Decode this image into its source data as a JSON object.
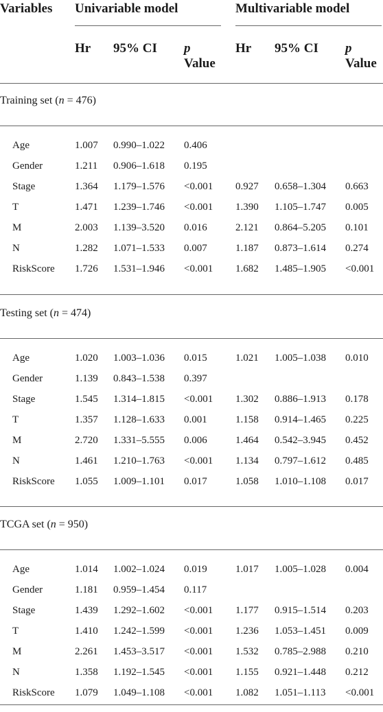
{
  "header": {
    "variables": "Variables",
    "univariable": "Univariable model",
    "multivariable": "Multivariable model",
    "hr": "Hr",
    "ci": "95% CI",
    "p": "p",
    "value": "Value"
  },
  "sections": [
    {
      "title_pre": "Training set (",
      "n_italic": "n",
      "title_post": " = 476)",
      "rows": [
        {
          "var": "Age",
          "u_hr": "1.007",
          "u_ci": "0.990–1.022",
          "u_p": "0.406",
          "m_hr": "",
          "m_ci": "",
          "m_p": ""
        },
        {
          "var": "Gender",
          "u_hr": "1.211",
          "u_ci": "0.906–1.618",
          "u_p": "0.195",
          "m_hr": "",
          "m_ci": "",
          "m_p": ""
        },
        {
          "var": "Stage",
          "u_hr": "1.364",
          "u_ci": "1.179–1.576",
          "u_p": "<0.001",
          "m_hr": "0.927",
          "m_ci": "0.658–1.304",
          "m_p": "0.663"
        },
        {
          "var": "T",
          "u_hr": "1.471",
          "u_ci": "1.239–1.746",
          "u_p": "<0.001",
          "m_hr": "1.390",
          "m_ci": "1.105–1.747",
          "m_p": "0.005"
        },
        {
          "var": "M",
          "u_hr": "2.003",
          "u_ci": "1.139–3.520",
          "u_p": "0.016",
          "m_hr": "2.121",
          "m_ci": "0.864–5.205",
          "m_p": "0.101"
        },
        {
          "var": "N",
          "u_hr": "1.282",
          "u_ci": "1.071–1.533",
          "u_p": "0.007",
          "m_hr": "1.187",
          "m_ci": "0.873–1.614",
          "m_p": "0.274"
        },
        {
          "var": "RiskScore",
          "u_hr": "1.726",
          "u_ci": "1.531–1.946",
          "u_p": "<0.001",
          "m_hr": "1.682",
          "m_ci": "1.485–1.905",
          "m_p": "<0.001"
        }
      ]
    },
    {
      "title_pre": "Testing set (",
      "n_italic": "n",
      "title_post": " = 474)",
      "rows": [
        {
          "var": "Age",
          "u_hr": "1.020",
          "u_ci": "1.003–1.036",
          "u_p": "0.015",
          "m_hr": "1.021",
          "m_ci": "1.005–1.038",
          "m_p": "0.010"
        },
        {
          "var": "Gender",
          "u_hr": "1.139",
          "u_ci": "0.843–1.538",
          "u_p": "0.397",
          "m_hr": "",
          "m_ci": "",
          "m_p": ""
        },
        {
          "var": "Stage",
          "u_hr": "1.545",
          "u_ci": "1.314–1.815",
          "u_p": "<0.001",
          "m_hr": "1.302",
          "m_ci": "0.886–1.913",
          "m_p": "0.178"
        },
        {
          "var": "T",
          "u_hr": "1.357",
          "u_ci": "1.128–1.633",
          "u_p": "0.001",
          "m_hr": "1.158",
          "m_ci": "0.914–1.465",
          "m_p": "0.225"
        },
        {
          "var": "M",
          "u_hr": "2.720",
          "u_ci": "1.331–5.555",
          "u_p": "0.006",
          "m_hr": "1.464",
          "m_ci": "0.542–3.945",
          "m_p": "0.452"
        },
        {
          "var": "N",
          "u_hr": "1.461",
          "u_ci": "1.210–1.763",
          "u_p": "<0.001",
          "m_hr": "1.134",
          "m_ci": "0.797–1.612",
          "m_p": "0.485"
        },
        {
          "var": "RiskScore",
          "u_hr": "1.055",
          "u_ci": "1.009–1.101",
          "u_p": "0.017",
          "m_hr": "1.058",
          "m_ci": "1.010–1.108",
          "m_p": "0.017"
        }
      ]
    },
    {
      "title_pre": "TCGA set (",
      "n_italic": "n",
      "title_post": " = 950)",
      "rows": [
        {
          "var": "Age",
          "u_hr": "1.014",
          "u_ci": "1.002–1.024",
          "u_p": "0.019",
          "m_hr": "1.017",
          "m_ci": "1.005–1.028",
          "m_p": "0.004"
        },
        {
          "var": "Gender",
          "u_hr": "1.181",
          "u_ci": "0.959–1.454",
          "u_p": "0.117",
          "m_hr": "",
          "m_ci": "",
          "m_p": ""
        },
        {
          "var": "Stage",
          "u_hr": "1.439",
          "u_ci": "1.292–1.602",
          "u_p": "<0.001",
          "m_hr": "1.177",
          "m_ci": "0.915–1.514",
          "m_p": "0.203"
        },
        {
          "var": "T",
          "u_hr": "1.410",
          "u_ci": "1.242–1.599",
          "u_p": "<0.001",
          "m_hr": "1.236",
          "m_ci": "1.053–1.451",
          "m_p": "0.009"
        },
        {
          "var": "M",
          "u_hr": "2.261",
          "u_ci": "1.453–3.517",
          "u_p": "<0.001",
          "m_hr": "1.532",
          "m_ci": "0.785–2.988",
          "m_p": "0.210"
        },
        {
          "var": "N",
          "u_hr": "1.358",
          "u_ci": "1.192–1.545",
          "u_p": "<0.001",
          "m_hr": "1.155",
          "m_ci": "0.921–1.448",
          "m_p": "0.212"
        },
        {
          "var": "RiskScore",
          "u_hr": "1.079",
          "u_ci": "1.049–1.108",
          "u_p": "<0.001",
          "m_hr": "1.082",
          "m_ci": "1.051–1.113",
          "m_p": "<0.001"
        }
      ]
    }
  ]
}
